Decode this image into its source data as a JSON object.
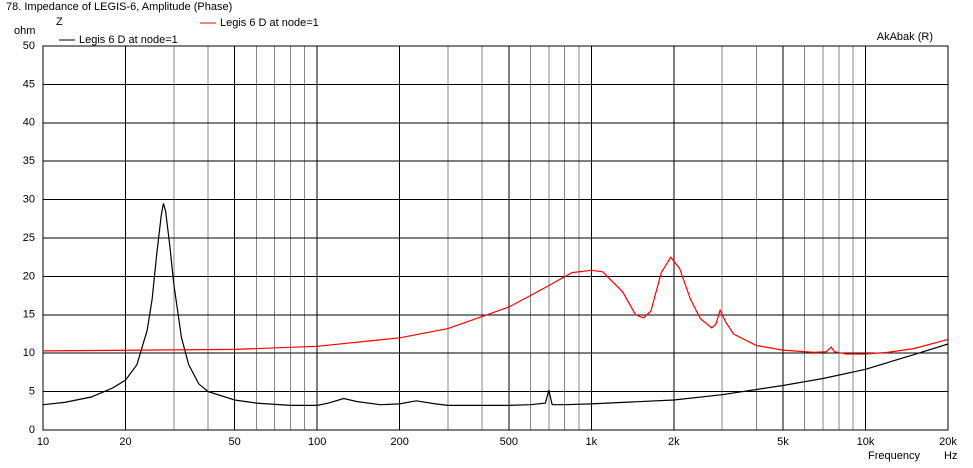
{
  "chart_data": {
    "type": "line",
    "title": "78. Impedance of LEGIS-6, Amplitude (Phase)",
    "y_label": "Z",
    "y_unit": "ohm",
    "x_label": "Frequency",
    "x_unit": "Hz",
    "annotation": "AkAbak (R)",
    "log_x": true,
    "grid": true,
    "xlim": [
      10,
      20000
    ],
    "ylim": [
      0,
      50
    ],
    "yticks": [
      0,
      5,
      10,
      15,
      20,
      25,
      30,
      35,
      40,
      45,
      50
    ],
    "xticks": [
      10,
      20,
      50,
      100,
      200,
      500,
      {
        "value": 1000,
        "label": "1k"
      },
      {
        "value": 2000,
        "label": "2k"
      },
      {
        "value": 5000,
        "label": "5k"
      },
      {
        "value": 10000,
        "label": "10k"
      },
      {
        "value": 20000,
        "label": "20k"
      }
    ],
    "x_minor_grid": [
      30,
      40,
      60,
      70,
      80,
      90,
      300,
      400,
      600,
      700,
      800,
      900,
      3000,
      4000,
      6000,
      7000,
      8000,
      9000
    ],
    "series": [
      {
        "name": "Legis 6 D at node=1",
        "color": "#000000",
        "x": [
          10,
          12,
          15,
          18,
          20,
          22,
          24,
          25,
          26,
          27,
          27.5,
          28,
          29,
          30,
          32,
          34,
          37,
          40,
          50,
          60,
          80,
          100,
          110,
          125,
          140,
          170,
          200,
          230,
          270,
          300,
          400,
          500,
          600,
          680,
          700,
          720,
          800,
          1000,
          2000,
          3000,
          5000,
          7000,
          10000,
          15000,
          20000
        ],
        "values": [
          3.3,
          3.6,
          4.3,
          5.5,
          6.5,
          8.5,
          13,
          17,
          23,
          28,
          29.5,
          28.5,
          24,
          19,
          12,
          8.5,
          6,
          5,
          3.9,
          3.5,
          3.2,
          3.2,
          3.5,
          4.1,
          3.7,
          3.3,
          3.4,
          3.8,
          3.4,
          3.2,
          3.2,
          3.2,
          3.3,
          3.5,
          5.2,
          3.3,
          3.3,
          3.4,
          3.9,
          4.6,
          5.8,
          6.7,
          7.9,
          9.8,
          11.2
        ]
      },
      {
        "name": "Legis 6 D at node=1",
        "color": "#ff0000",
        "x": [
          10,
          50,
          100,
          200,
          300,
          500,
          700,
          850,
          1000,
          1100,
          1300,
          1450,
          1550,
          1650,
          1800,
          1950,
          2100,
          2300,
          2500,
          2750,
          2850,
          2950,
          3100,
          3300,
          4000,
          5000,
          6500,
          7200,
          7500,
          7700,
          8500,
          10000,
          12000,
          15000,
          20000
        ],
        "values": [
          10.3,
          10.5,
          10.9,
          12,
          13.2,
          16,
          18.8,
          20.5,
          20.8,
          20.6,
          18,
          15,
          14.6,
          15.5,
          20.5,
          22.5,
          21,
          17,
          14.5,
          13.3,
          13.8,
          15.6,
          14,
          12.5,
          11,
          10.4,
          10.1,
          10.2,
          10.8,
          10.2,
          9.9,
          9.9,
          10.1,
          10.6,
          11.8
        ]
      }
    ]
  }
}
